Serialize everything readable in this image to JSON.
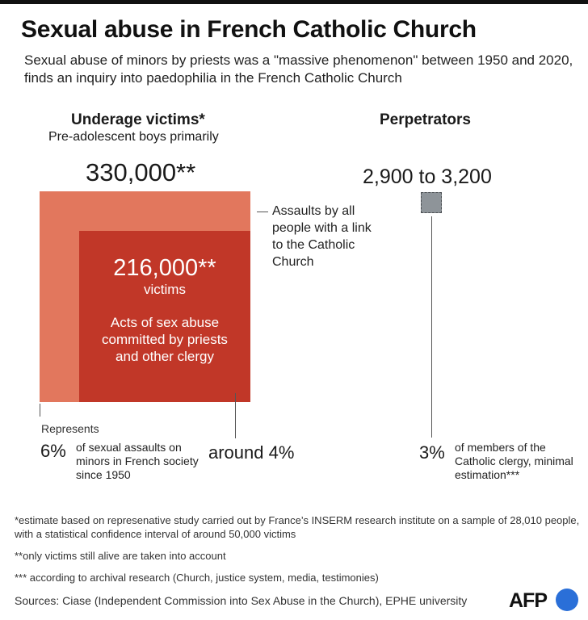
{
  "title": "Sexual abuse in French Catholic Church",
  "subtitle": "Sexual abuse of minors by priests was a \"massive phenomenon\" between 1950 and 2020, finds an inquiry into paedophilia in the French Catholic Church",
  "victims": {
    "heading": "Underage victims*",
    "subheading": "Pre-adolescent boys primarily",
    "total": "330,000**",
    "total_label": "Assaults by all people with a link to the Catholic Church",
    "clergy": "216,000**",
    "clergy_unit": "victims",
    "clergy_desc": "Acts of sex abuse committed by priests and other clergy",
    "represents_label": "Represents",
    "total_pct": "6%",
    "total_pct_desc": "of sexual assaults on minors in French society since 1950",
    "clergy_pct": "around 4%"
  },
  "perpetrators": {
    "heading": "Perpetrators",
    "value": "2,900 to 3,200",
    "pct": "3%",
    "pct_desc": "of members of the Catholic clergy, minimal estimation***"
  },
  "chart_data": {
    "type": "proportional-area",
    "groups": [
      {
        "name": "Underage victims",
        "squares": [
          {
            "label": "Assaults by all people with a link to the Catholic Church",
            "value": 330000,
            "share": "6%",
            "color": "#e2775d"
          },
          {
            "label": "Acts of sex abuse committed by priests and other clergy",
            "value": 216000,
            "share": "around 4%",
            "color": "#c13728"
          }
        ]
      },
      {
        "name": "Perpetrators",
        "squares": [
          {
            "label": "2,900 to 3,200",
            "value": [
              2900,
              3200
            ],
            "share": "3%",
            "color": "#8e9499"
          }
        ]
      }
    ]
  },
  "footnotes": {
    "one_star": "*estimate based on represenative study carried out by France’s INSERM research institute on a sample of 28,010 people, with a statistical confidence interval of around 50,000 victims",
    "two_star": "**only victims still alive are taken into account",
    "three_star": "*** according to archival research (Church, justice system, media, testimonies)"
  },
  "sources": "Sources: Ciase (Independent Commission into Sex Abuse in the Church), EPHE university",
  "logo": {
    "text": "AFP",
    "accent": "#2a6fd8"
  }
}
